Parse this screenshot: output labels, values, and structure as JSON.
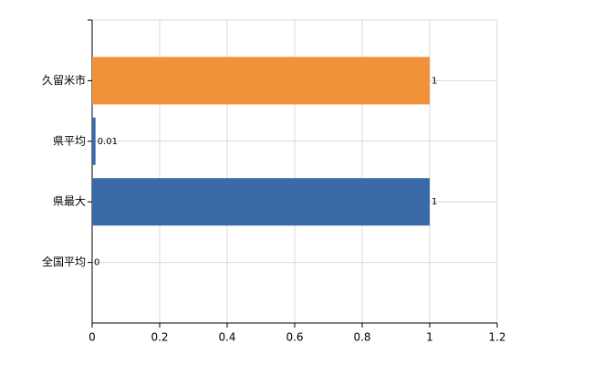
{
  "chart_data": {
    "type": "hbar",
    "categories": [
      "久留米市",
      "県平均",
      "県最大",
      "全国平均"
    ],
    "values": [
      1,
      0.01,
      1,
      0
    ],
    "colors": [
      "#f0923a",
      "#3a6aa8",
      "#3a6aa8",
      "#3a6aa8"
    ],
    "xlim": [
      0,
      1.2
    ],
    "xticks": [
      0,
      0.2,
      0.4,
      0.6,
      0.8,
      1,
      1.2
    ],
    "grid": true
  }
}
